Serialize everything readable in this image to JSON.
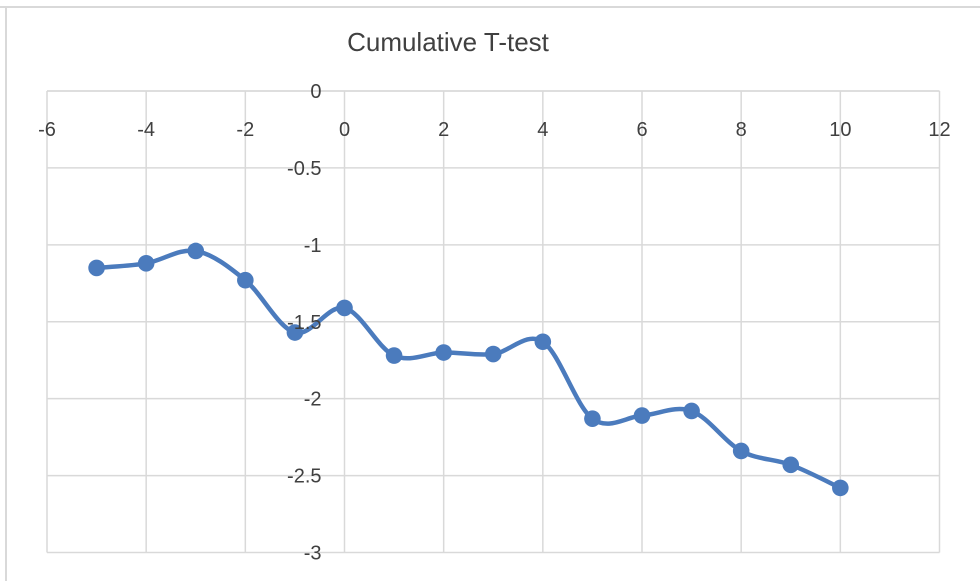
{
  "chart_data": {
    "type": "line",
    "title": "Cumulative T-test",
    "x": [
      -5,
      -4,
      -3,
      -2,
      -1,
      0,
      1,
      2,
      3,
      4,
      5,
      6,
      7,
      8,
      9,
      10
    ],
    "series": [
      {
        "values": [
          -1.15,
          -1.12,
          -1.04,
          -1.23,
          -1.57,
          -1.41,
          -1.72,
          -1.7,
          -1.71,
          -1.63,
          -2.13,
          -2.11,
          -2.08,
          -2.34,
          -2.43,
          -2.58
        ]
      }
    ],
    "xlabel": "",
    "ylabel": "",
    "xlim": [
      -6,
      12
    ],
    "ylim": [
      -3,
      0
    ],
    "x_tick_labels": [
      "-6",
      "-4",
      "-2",
      "0",
      "2",
      "4",
      "6",
      "8",
      "10",
      "12"
    ],
    "x_tick_values": [
      -6,
      -4,
      -2,
      0,
      2,
      4,
      6,
      8,
      10,
      12
    ],
    "y_tick_labels": [
      "0",
      "-0.5",
      "-1",
      "-1.5",
      "-2",
      "-2.5",
      "-3"
    ],
    "y_tick_values": [
      0,
      -0.5,
      -1,
      -1.5,
      -2,
      -2.5,
      -3
    ],
    "grid": true,
    "legend_position": "none",
    "line_smoothed": true,
    "marker": "circle",
    "colors": {
      "line": "#4B7BBD",
      "marker": "#4B7BBD",
      "gridline": "#D9D9D9",
      "axis_line": "#D9D9D9",
      "chart_border": "#D9D9D9",
      "text": "#404040",
      "background": "#FFFFFF"
    }
  }
}
